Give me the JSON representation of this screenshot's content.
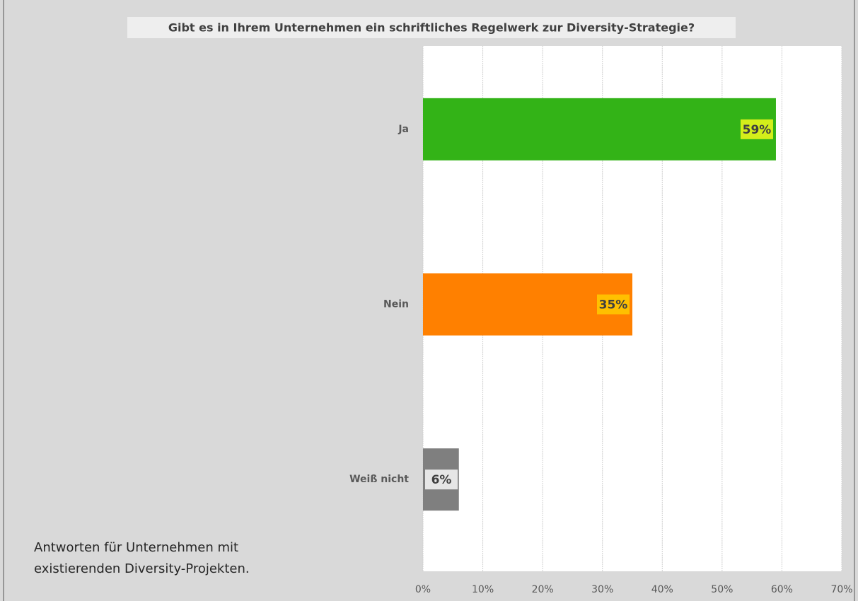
{
  "chart_data": {
    "type": "bar",
    "orientation": "horizontal",
    "title": "Gibt es in Ihrem Unternehmen ein schriftliches Regelwerk zur Diversity-Strategie?",
    "categories": [
      "Ja",
      "Nein",
      "Weiß nicht"
    ],
    "values": [
      59,
      35,
      6
    ],
    "value_labels": [
      "59%",
      "35%",
      "6%"
    ],
    "colors": [
      "#33b317",
      "#ff8000",
      "#7f7f7f"
    ],
    "label_backgrounds": [
      "#d4ee1a",
      "#ffc000",
      "#e6e6e6"
    ],
    "xlim": [
      0,
      70
    ],
    "xticks": [
      {
        "value": 0,
        "label": "0%"
      },
      {
        "value": 10,
        "label": "10%"
      },
      {
        "value": 20,
        "label": "20%"
      },
      {
        "value": 30,
        "label": "30%"
      },
      {
        "value": 40,
        "label": "40%"
      },
      {
        "value": 50,
        "label": "50%"
      },
      {
        "value": 60,
        "label": "60%"
      },
      {
        "value": 70,
        "label": "70%"
      }
    ],
    "grid": true,
    "annotations": [
      "Antworten für Unternehmen mit",
      "existierenden Diversity-Projekten."
    ]
  }
}
